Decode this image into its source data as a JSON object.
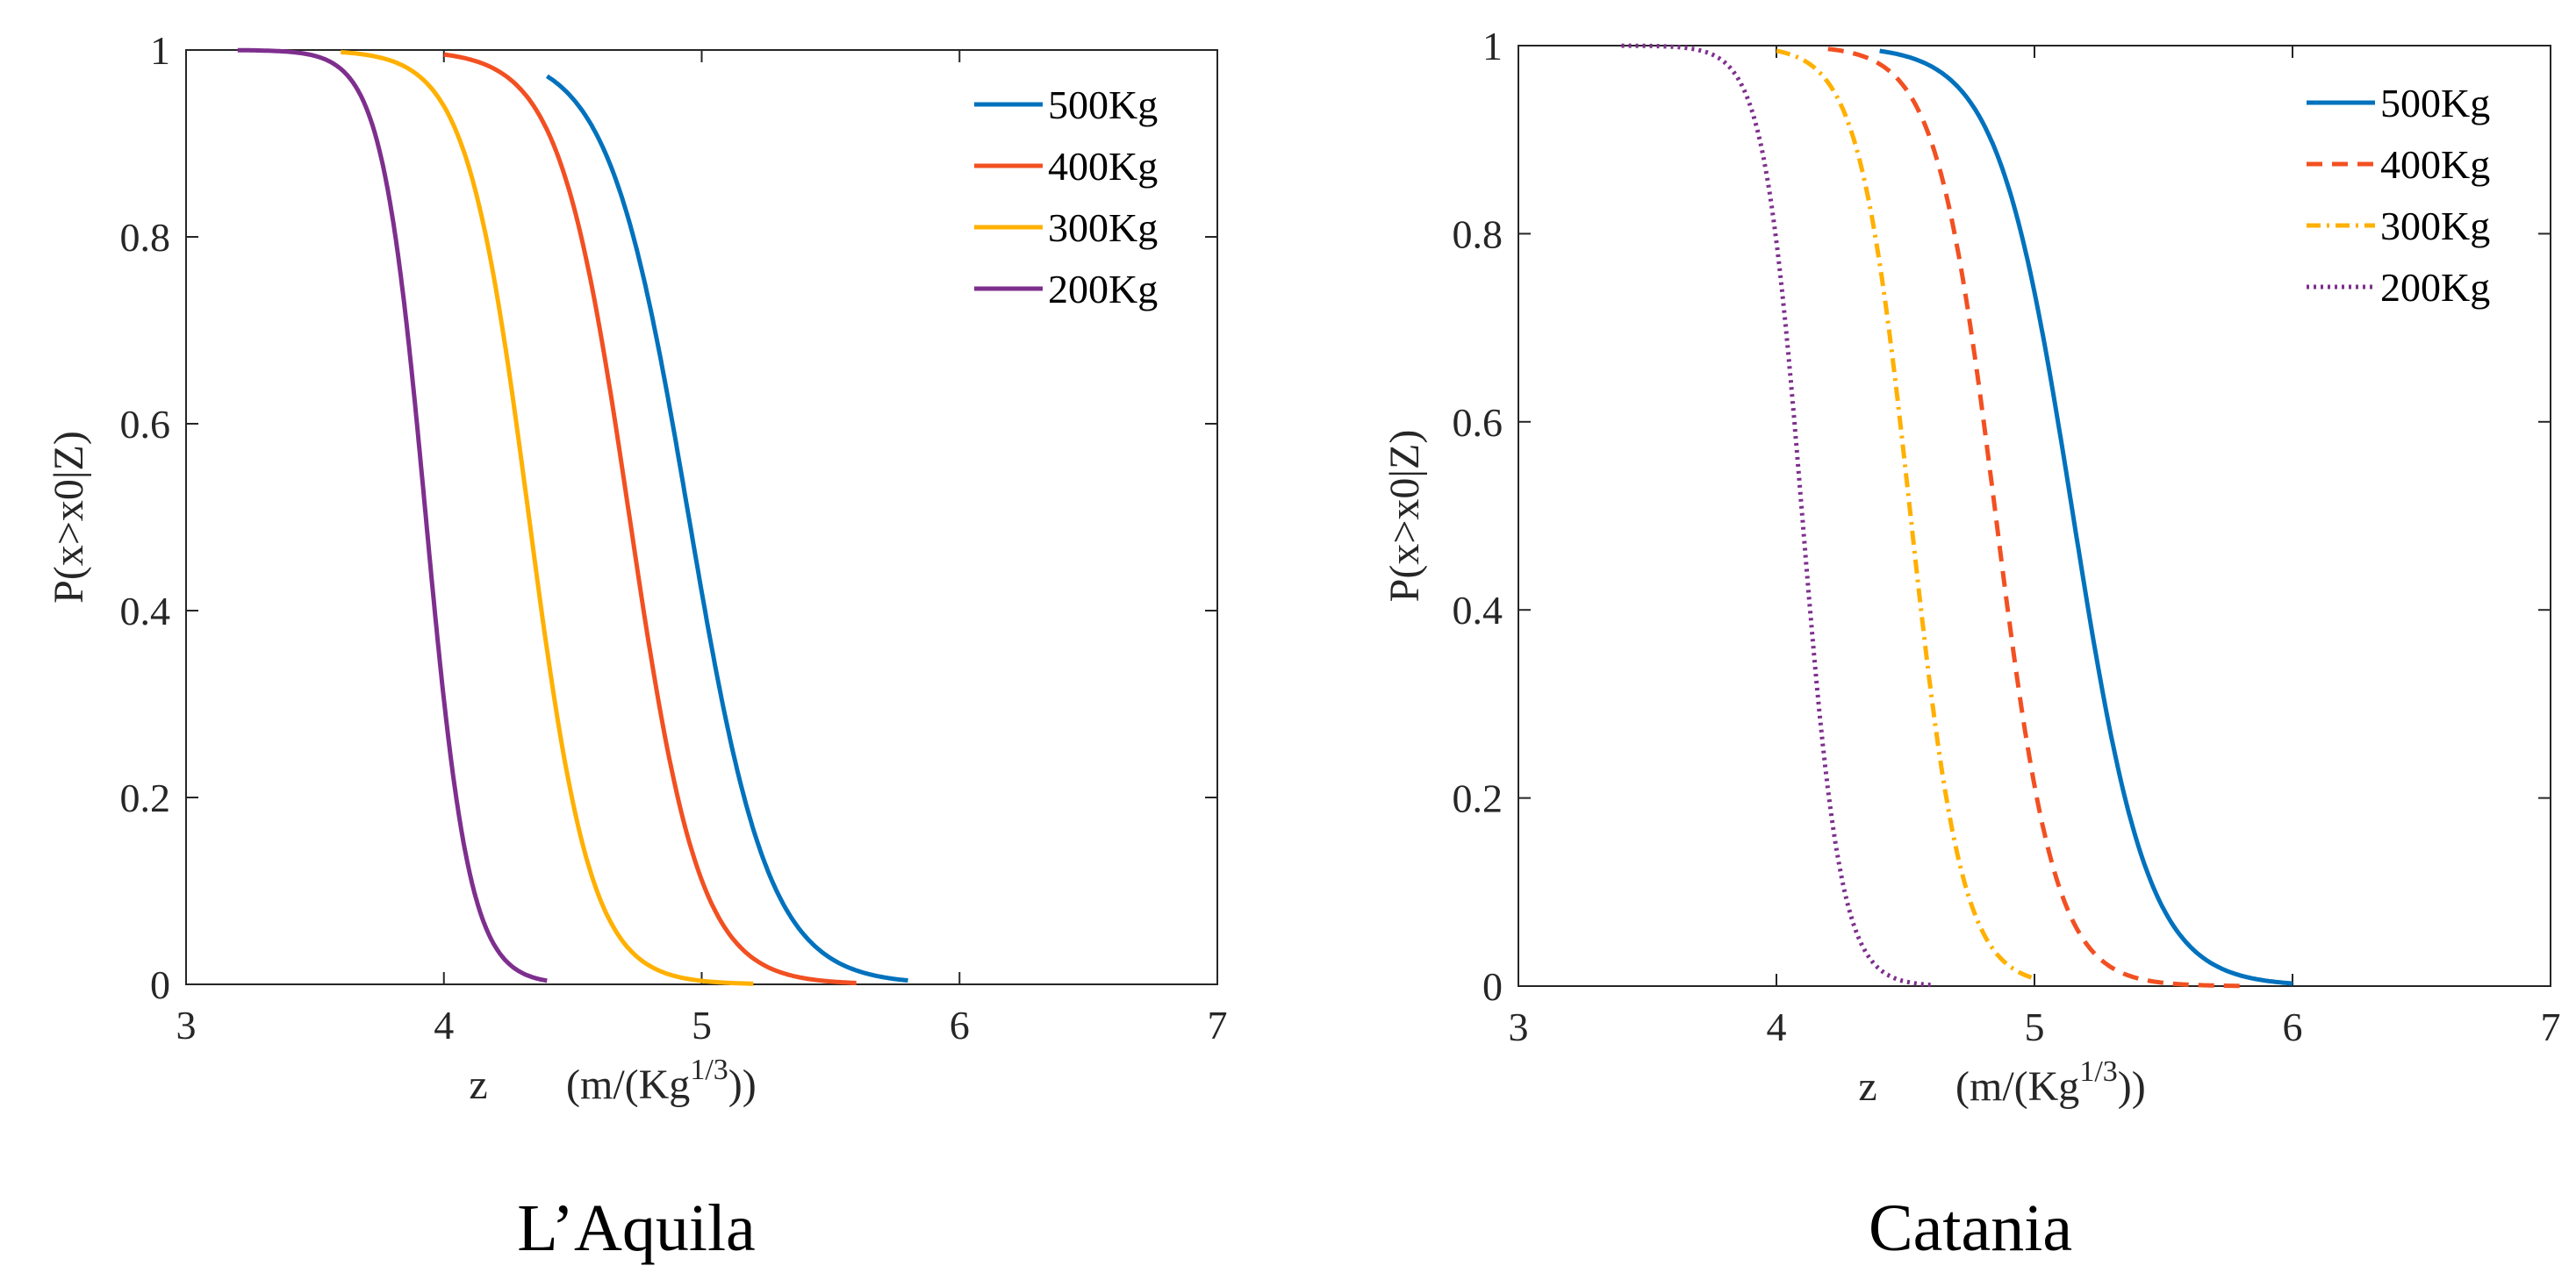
{
  "chart_data": [
    {
      "type": "line",
      "title": "L’Aquila",
      "xlabel": "z",
      "xlabel_units": {
        "prefix": "(m/(Kg",
        "superscript": "1/3",
        "suffix": "))"
      },
      "ylabel": "P(x>x0|Z)",
      "xlim": [
        3,
        7
      ],
      "ylim": [
        0,
        1
      ],
      "xticks": [
        "3",
        "4",
        "5",
        "6",
        "7"
      ],
      "yticks": [
        "0",
        "0.2",
        "0.4",
        "0.6",
        "0.8",
        "1"
      ],
      "legend_position": "top-right",
      "series": [
        {
          "name": "500Kg",
          "color": "#0072BD",
          "dash": "solid",
          "mid": 4.95,
          "scale": 0.155,
          "x_start": 4.4,
          "x_end": 5.8
        },
        {
          "name": "400Kg",
          "color": "#F25022",
          "dash": "solid",
          "mid": 4.72,
          "scale": 0.135,
          "x_start": 4.0,
          "x_end": 5.6
        },
        {
          "name": "300Kg",
          "color": "#FFB000",
          "dash": "solid",
          "mid": 4.33,
          "scale": 0.12,
          "x_start": 3.6,
          "x_end": 5.2
        },
        {
          "name": "200Kg",
          "color": "#7E2F8E",
          "dash": "solid",
          "mid": 3.93,
          "scale": 0.085,
          "x_start": 3.2,
          "x_end": 4.4
        }
      ]
    },
    {
      "type": "line",
      "title": "Catania",
      "xlabel": "z",
      "xlabel_units": {
        "prefix": "(m/(Kg",
        "superscript": "1/3",
        "suffix": "))"
      },
      "ylabel": "P(x>x0|Z)",
      "xlim": [
        3,
        7
      ],
      "ylim": [
        0,
        1
      ],
      "xticks": [
        "3",
        "4",
        "5",
        "6",
        "7"
      ],
      "yticks": [
        "0",
        "0.2",
        "0.4",
        "0.6",
        "0.8",
        "1"
      ],
      "legend_position": "top-right",
      "series": [
        {
          "name": "500Kg",
          "color": "#0072BD",
          "dash": "solid",
          "mid": 5.15,
          "scale": 0.145,
          "x_start": 4.4,
          "x_end": 6.0
        },
        {
          "name": "400Kg",
          "color": "#F25022",
          "dash": "dashed",
          "mid": 4.85,
          "scale": 0.115,
          "x_start": 4.2,
          "x_end": 5.8
        },
        {
          "name": "300Kg",
          "color": "#FFB000",
          "dash": "dashdot",
          "mid": 4.52,
          "scale": 0.1,
          "x_start": 4.0,
          "x_end": 5.0
        },
        {
          "name": "200Kg",
          "color": "#7E2F8E",
          "dash": "dotted",
          "mid": 4.1,
          "scale": 0.075,
          "x_start": 3.4,
          "x_end": 4.6
        }
      ]
    }
  ]
}
